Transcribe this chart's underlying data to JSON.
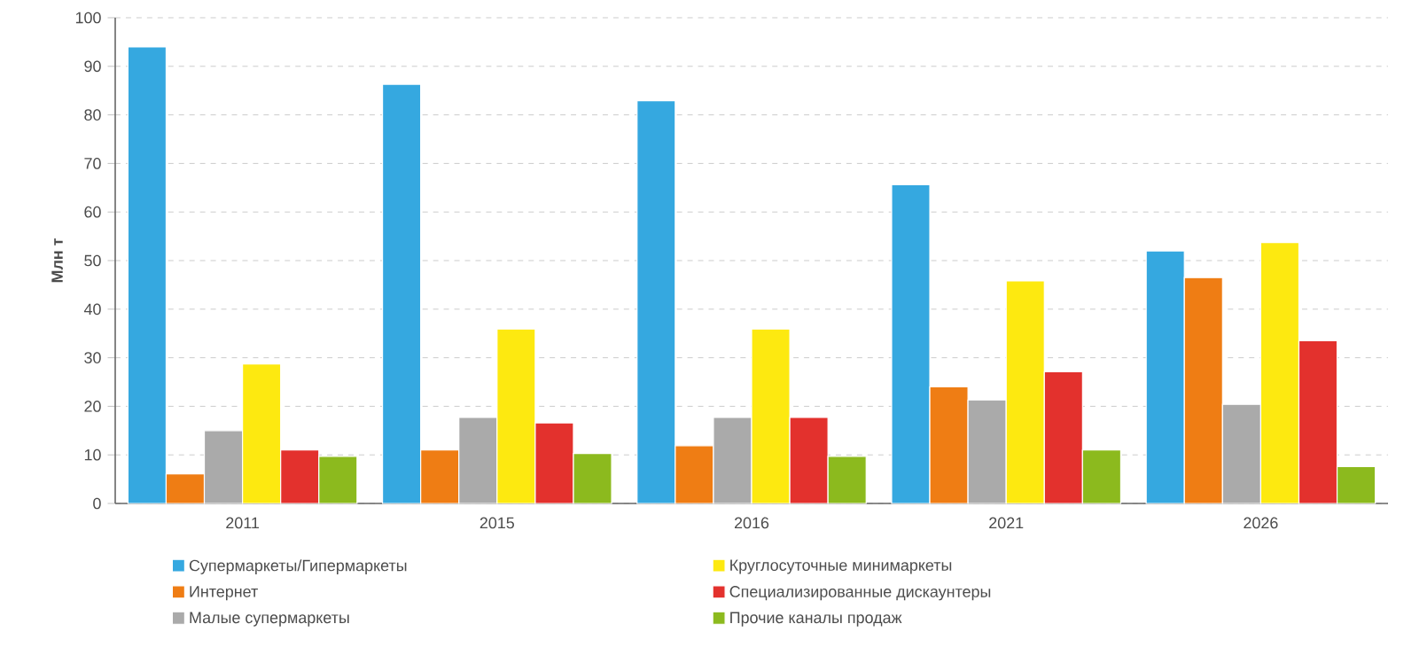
{
  "chart_data": {
    "type": "bar",
    "ylabel": "Млн т",
    "categories": [
      "2011",
      "2015",
      "2016",
      "2021",
      "2026"
    ],
    "series": [
      {
        "name": "Супермаркеты/Гипермаркеты",
        "color": "#35a8e0",
        "values": [
          94.0,
          86.3,
          82.9,
          65.6,
          52.0
        ]
      },
      {
        "name": "Интернет",
        "color": "#ef7d14",
        "values": [
          6.1,
          11.0,
          11.9,
          24.0,
          46.5
        ]
      },
      {
        "name": "Малые супермаркеты",
        "color": "#aaaaaa",
        "values": [
          15.0,
          17.7,
          17.7,
          21.3,
          20.4
        ]
      },
      {
        "name": "Круглосуточные минимаркеты",
        "color": "#fde910",
        "values": [
          28.7,
          35.9,
          35.9,
          45.8,
          53.7
        ]
      },
      {
        "name": "Специализированные дискаунтеры",
        "color": "#e3312d",
        "values": [
          11.0,
          16.6,
          17.7,
          27.1,
          33.5
        ]
      },
      {
        "name": "Прочие каналы продаж",
        "color": "#8cba1e",
        "values": [
          9.7,
          10.3,
          9.7,
          11.0,
          7.6
        ]
      }
    ],
    "ylim": [
      0,
      100
    ],
    "yticks": [
      0,
      10,
      20,
      30,
      40,
      50,
      60,
      70,
      80,
      90,
      100
    ],
    "grid": "y",
    "legend": "bottom"
  }
}
